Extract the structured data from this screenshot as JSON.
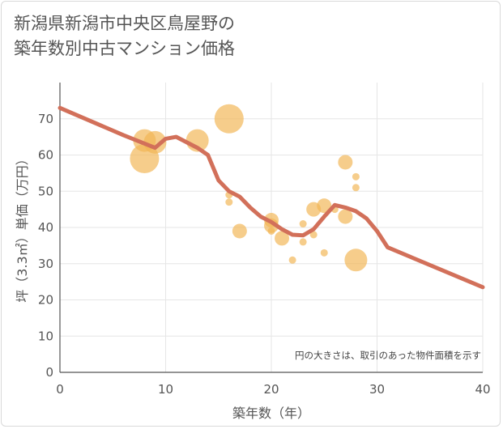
{
  "title_lines": [
    "新潟県新潟市中央区鳥屋野の",
    "築年数別中古マンション価格"
  ],
  "chart_data": {
    "type": "scatter",
    "title": "新潟県新潟市中央区鳥屋野の築年数別中古マンション価格",
    "xlabel": "築年数（年）",
    "ylabel": "坪（3.3㎡）単価（万円）",
    "xlim": [
      0,
      40
    ],
    "ylim": [
      0,
      80
    ],
    "x_ticks": [
      0,
      10,
      20,
      30,
      40
    ],
    "y_ticks": [
      0,
      10,
      20,
      30,
      40,
      50,
      60,
      70
    ],
    "grid": true,
    "note": "円の大きさは、取引のあった物件面積を示す",
    "colors": {
      "bubble": "#f2b654",
      "line": "#d2705a",
      "grid": "#e6e6e6",
      "axis": "#555555"
    },
    "points": [
      {
        "x": 8,
        "y": 64,
        "size": 3
      },
      {
        "x": 8,
        "y": 59,
        "size": 4
      },
      {
        "x": 9,
        "y": 63.5,
        "size": 3
      },
      {
        "x": 13,
        "y": 64,
        "size": 3
      },
      {
        "x": 16,
        "y": 70,
        "size": 4
      },
      {
        "x": 16,
        "y": 49,
        "size": 1
      },
      {
        "x": 16,
        "y": 47,
        "size": 1
      },
      {
        "x": 17,
        "y": 39,
        "size": 2
      },
      {
        "x": 20,
        "y": 42,
        "size": 2
      },
      {
        "x": 20,
        "y": 40.5,
        "size": 2
      },
      {
        "x": 20,
        "y": 39,
        "size": 1
      },
      {
        "x": 21,
        "y": 37,
        "size": 2
      },
      {
        "x": 22,
        "y": 31,
        "size": 1
      },
      {
        "x": 23,
        "y": 41,
        "size": 1
      },
      {
        "x": 23,
        "y": 36,
        "size": 1
      },
      {
        "x": 24,
        "y": 45,
        "size": 2
      },
      {
        "x": 24,
        "y": 38,
        "size": 1
      },
      {
        "x": 25,
        "y": 46,
        "size": 2
      },
      {
        "x": 25,
        "y": 33,
        "size": 1
      },
      {
        "x": 26,
        "y": 45,
        "size": 1
      },
      {
        "x": 27,
        "y": 58,
        "size": 2
      },
      {
        "x": 27,
        "y": 43,
        "size": 2
      },
      {
        "x": 28,
        "y": 54,
        "size": 1
      },
      {
        "x": 28,
        "y": 51,
        "size": 1
      },
      {
        "x": 28,
        "y": 31,
        "size": 3
      }
    ],
    "trend_line": [
      {
        "x": 0,
        "y": 73
      },
      {
        "x": 6,
        "y": 65.5
      },
      {
        "x": 9,
        "y": 62
      },
      {
        "x": 10,
        "y": 64.5
      },
      {
        "x": 11,
        "y": 65
      },
      {
        "x": 13,
        "y": 62
      },
      {
        "x": 14,
        "y": 60
      },
      {
        "x": 15,
        "y": 53
      },
      {
        "x": 16,
        "y": 50
      },
      {
        "x": 17,
        "y": 48.5
      },
      {
        "x": 18,
        "y": 45.5
      },
      {
        "x": 19,
        "y": 43
      },
      {
        "x": 20,
        "y": 41.5
      },
      {
        "x": 21,
        "y": 39.5
      },
      {
        "x": 22,
        "y": 38
      },
      {
        "x": 23,
        "y": 37.8
      },
      {
        "x": 24,
        "y": 39.5
      },
      {
        "x": 25,
        "y": 43
      },
      {
        "x": 26,
        "y": 46.2
      },
      {
        "x": 27,
        "y": 45.5
      },
      {
        "x": 28,
        "y": 44.5
      },
      {
        "x": 29,
        "y": 42.5
      },
      {
        "x": 30,
        "y": 39
      },
      {
        "x": 31,
        "y": 34.5
      },
      {
        "x": 40,
        "y": 23.5
      }
    ]
  }
}
